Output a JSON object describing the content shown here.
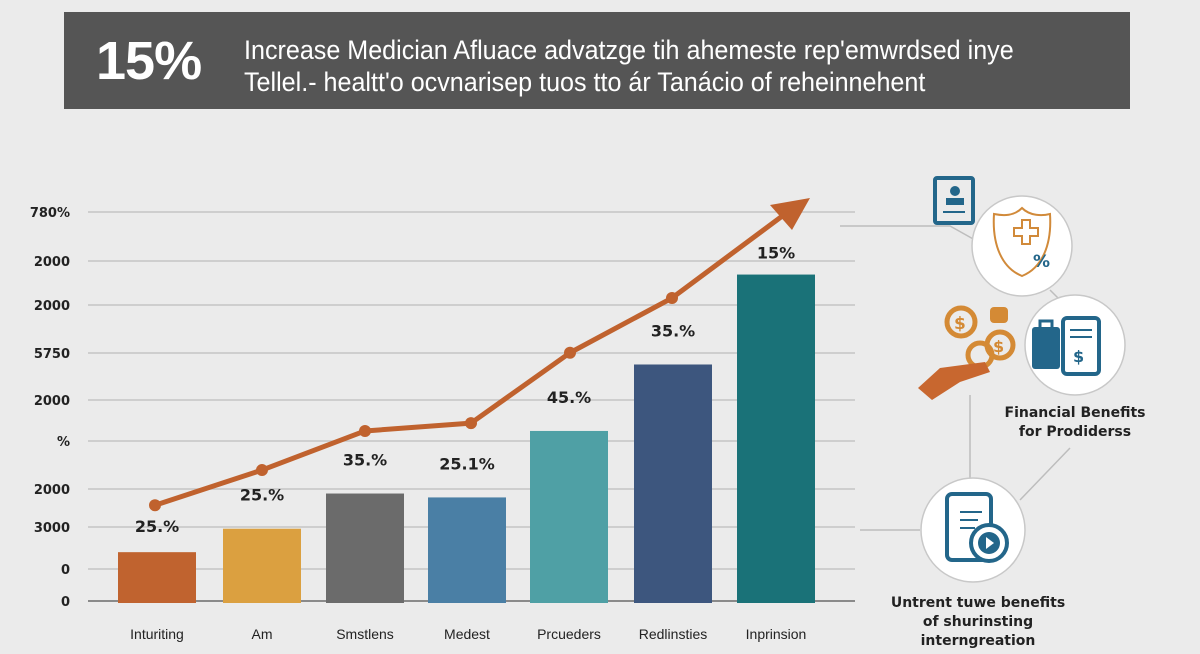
{
  "header": {
    "headline": "15%",
    "subtitle_line1": "Increase Medician Afluace advatzge tih ahemeste rep'emwrdsed inye",
    "subtitle_line2": "Tellel.- healtt'o ocvnarisep tuos tto ár Tanácio of reheinnehent"
  },
  "chart_data": {
    "type": "bar",
    "categories": [
      "Inturiting",
      "Am",
      "Smstlens",
      "Medest",
      "Prcueders",
      "Redlinsties",
      "Inprinsion"
    ],
    "y_tick_labels": [
      "0",
      "0",
      "3000",
      "2000",
      "%",
      "2000",
      "5750",
      "2000",
      "2000",
      "780%"
    ],
    "bar_levels_fraction_of_axis": [
      0.13,
      0.19,
      0.28,
      0.27,
      0.44,
      0.61,
      0.84
    ],
    "data_labels": [
      "25.%",
      "25.%",
      "35.%",
      "25.1%",
      "45.%",
      "35.%",
      "15%"
    ],
    "trend_line_levels_fraction_of_axis": [
      0.25,
      0.34,
      0.44,
      0.46,
      0.64,
      0.78
    ],
    "trend_arrow": true,
    "grid": true,
    "bar_colors": [
      "#c0632f",
      "#dba040",
      "#6b6b6b",
      "#4a7fa5",
      "#4fa0a5",
      "#3d567e",
      "#1a7278"
    ],
    "line_color": "#c0622e"
  },
  "side_panel": {
    "caption_financial": "Financial Benefits for Prodiderss",
    "caption_integration": "Untrent tuwe benefits of shurinsting interngreation",
    "icons": [
      "profile-card-icon",
      "shield-plus-percent-icon",
      "coins-hand-icon",
      "bag-tablet-dollar-icon",
      "tablet-checklist-play-icon"
    ]
  }
}
